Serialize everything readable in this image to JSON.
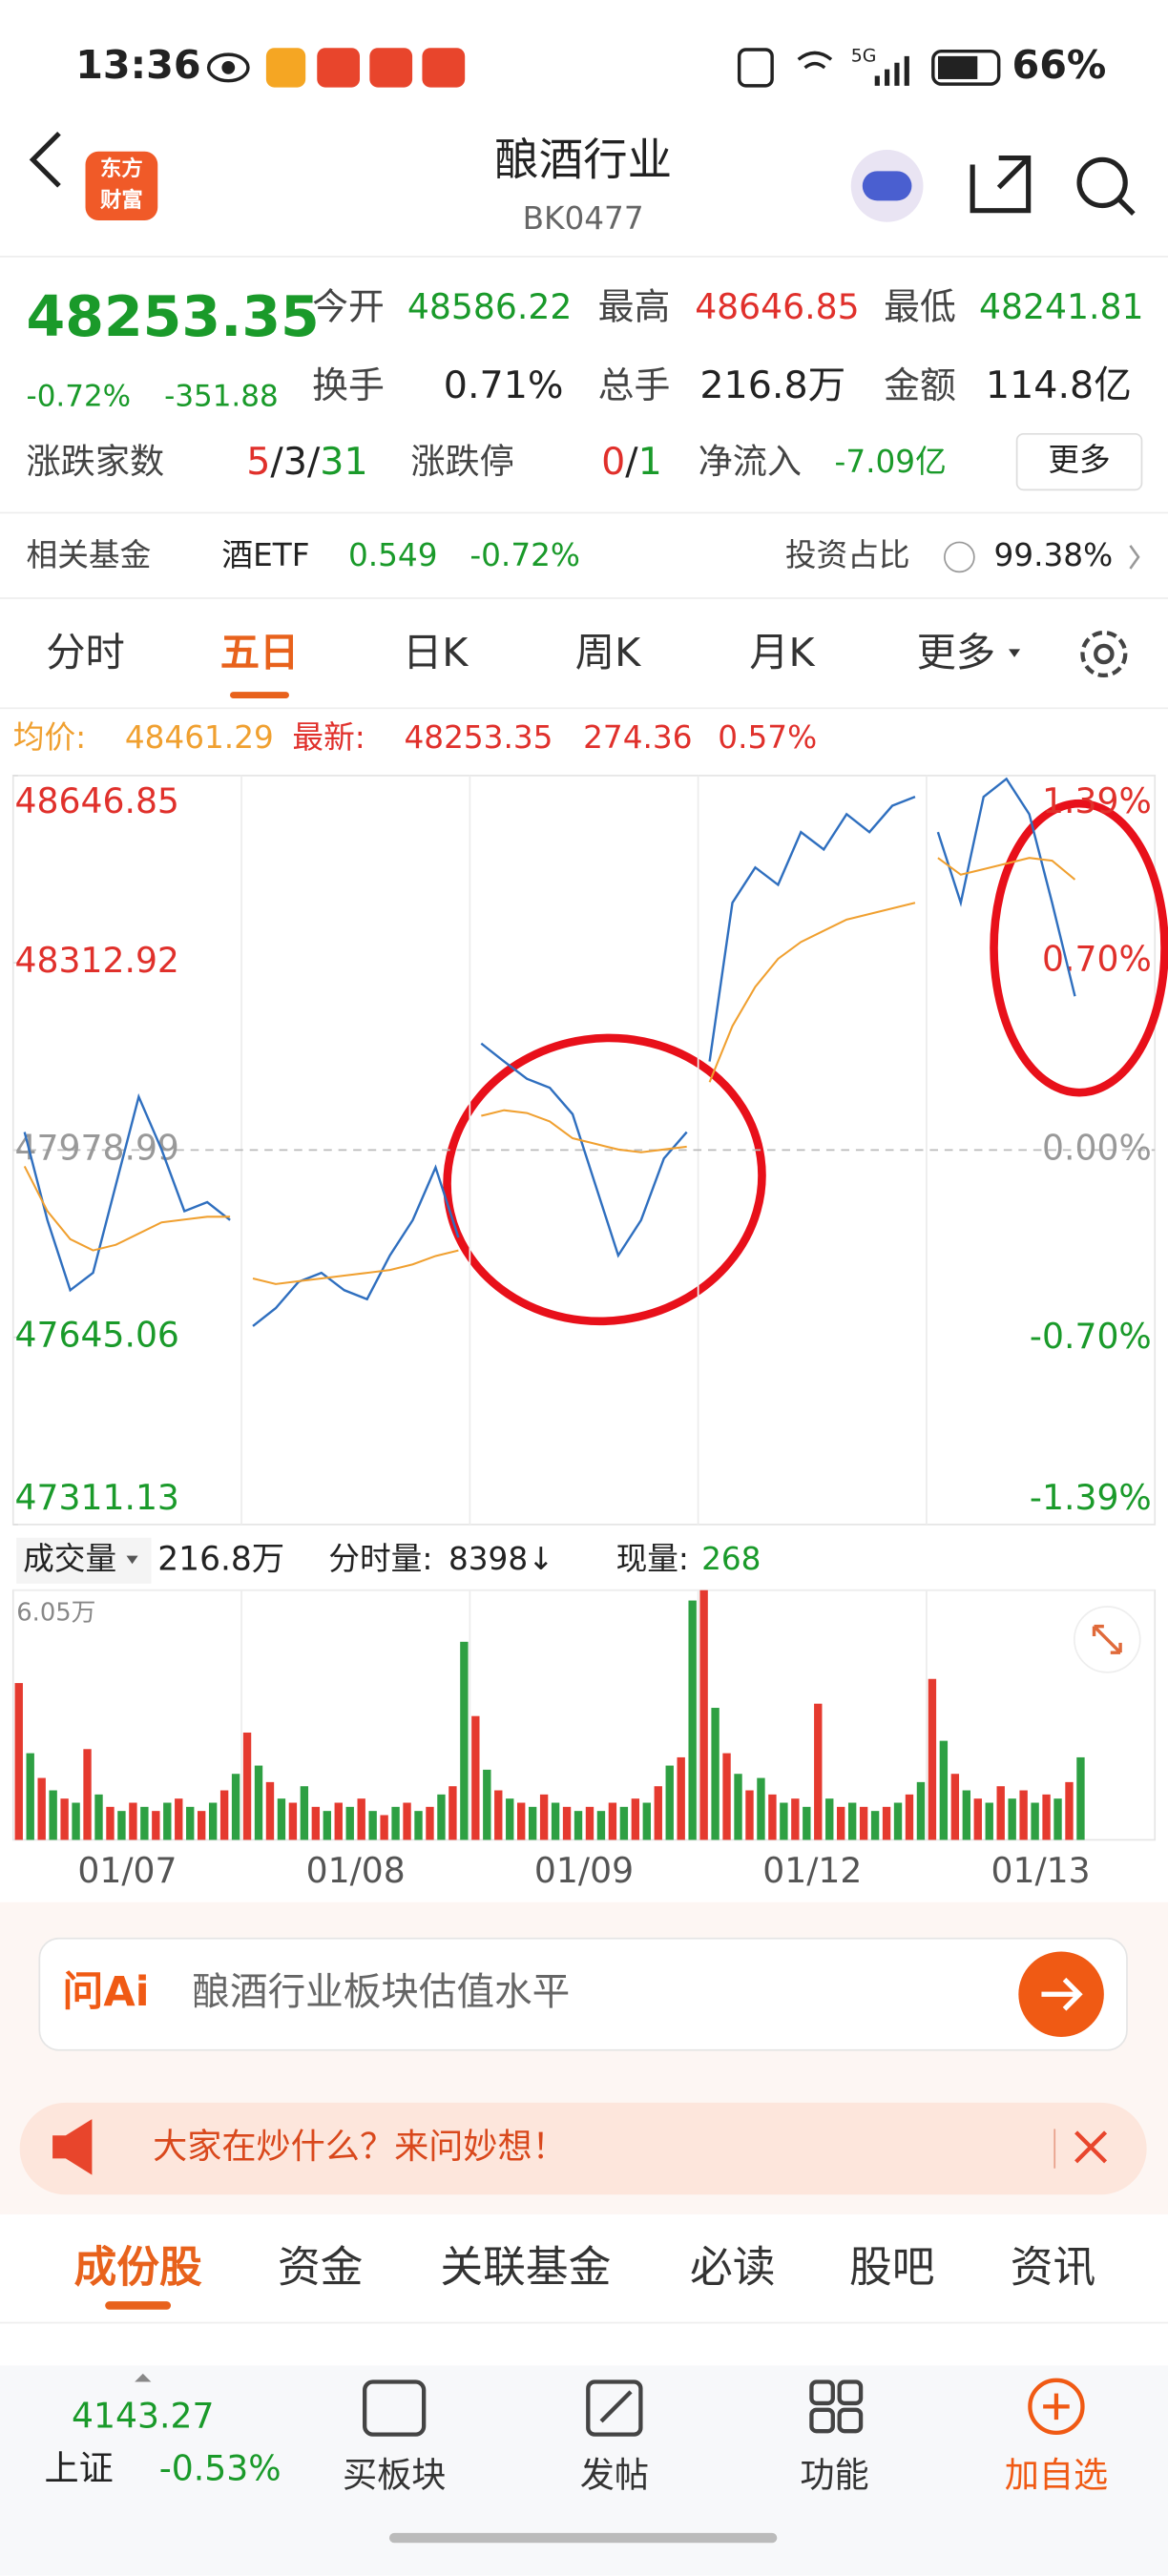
{
  "status_bar": {
    "time": "13:36",
    "network": "5G",
    "battery": "66%"
  },
  "header": {
    "logo_lines": [
      "东方",
      "财富"
    ],
    "title": "酿酒行业",
    "code": "BK0477"
  },
  "quote": {
    "price": "48253.35",
    "change_pct": "-0.72%",
    "change": "-351.88",
    "open": {
      "label": "今开",
      "value": "48586.22"
    },
    "high": {
      "label": "最高",
      "value": "48646.85"
    },
    "low": {
      "label": "最低",
      "value": "48241.81"
    },
    "turnover": {
      "label": "换手",
      "value": "0.71%"
    },
    "volume": {
      "label": "总手",
      "value": "216.8万"
    },
    "amount": {
      "label": "金额",
      "value": "114.8亿"
    },
    "breadth": {
      "label": "涨跌家数",
      "up": "5",
      "flat": "3",
      "down": "31",
      "separator": "/"
    },
    "limits": {
      "label": "涨跌停",
      "up": "0",
      "down": "1",
      "separator": "/"
    },
    "inflow": {
      "label": "净流入",
      "value": "-7.09亿"
    },
    "more": "更多"
  },
  "fund": {
    "label": "相关基金",
    "name": "酒ETF",
    "price": "0.549",
    "change": "-0.72%",
    "ratio_label": "投资占比",
    "ratio": "99.38%"
  },
  "period_tabs": {
    "items": [
      "分时",
      "五日",
      "日K",
      "周K",
      "月K",
      "更多"
    ],
    "active": 1
  },
  "chart_info": {
    "avg_label": "均价:",
    "avg": "48461.29",
    "last_label": "最新:",
    "last": "48253.35",
    "diff": "274.36",
    "pct": "0.57%"
  },
  "chart_data": [
    {
      "type": "line",
      "categories": [
        "01/07",
        "01/08",
        "01/09",
        "01/12",
        "01/13"
      ],
      "series": [
        {
          "color": "#2f6fbf",
          "values": [
            [
              48011,
              47854,
              47729,
              47760,
              47917,
              48074,
              47980,
              47870,
              47886,
              47854
            ],
            [
              47665,
              47697,
              47744,
              47760,
              47729,
              47713,
              47791,
              47854,
              47948,
              47823
            ],
            [
              48169,
              48137,
              48106,
              48090,
              48043,
              47917,
              47791,
              47854,
              47964,
              48011
            ],
            [
              48137,
              48420,
              48483,
              48452,
              48546,
              48515,
              48578,
              48546,
              48593,
              48609
            ],
            [
              48546,
              48420,
              48609,
              48641,
              48578,
              48420,
              48253.35,
              null,
              null,
              null
            ]
          ]
        },
        {
          "color": "#f0a030",
          "values": [
            [
              47950,
              47870,
              47820,
              47800,
              47810,
              47830,
              47850,
              47855,
              47860,
              47860
            ],
            [
              47750,
              47740,
              47745,
              47750,
              47755,
              47760,
              47765,
              47775,
              47790,
              47800
            ],
            [
              48040,
              48050,
              48045,
              48030,
              48000,
              47990,
              47980,
              47975,
              47980,
              47985
            ],
            [
              48100,
              48200,
              48270,
              48320,
              48350,
              48370,
              48390,
              48400,
              48410,
              48420
            ],
            [
              48500,
              48470,
              48480,
              48490,
              48500,
              48495,
              48461.29,
              null,
              null,
              null
            ]
          ]
        }
      ],
      "ylim": [
        47311.13,
        48646.85
      ],
      "yticks": [
        47311.13,
        47645.06,
        47978.99,
        48312.92,
        48646.85
      ],
      "y2lim": [
        -1.39,
        1.39
      ],
      "y2ticks": [
        {
          "value": -1.39,
          "label": "-1.39%"
        },
        {
          "value": -0.7,
          "label": "-0.70%"
        },
        {
          "value": 0,
          "label": "0.00%"
        },
        {
          "value": 0.7,
          "label": "0.70%"
        },
        {
          "value": 1.39,
          "label": "1.39%"
        }
      ],
      "grid": true
    },
    {
      "type": "bar",
      "series": [
        {
          "colors": [
            "#e53a2f",
            "#2ea043"
          ],
          "values": [
            [
              3.8,
              2.1,
              1.5,
              1.2,
              1.0,
              0.9,
              2.2,
              1.1,
              0.8,
              0.7,
              0.9,
              0.8,
              0.7,
              0.9,
              1.0,
              0.8,
              0.7,
              0.9,
              1.2,
              1.6
            ],
            [
              2.6,
              1.8,
              1.4,
              1.0,
              0.9,
              1.3,
              0.8,
              0.7,
              0.9,
              0.8,
              1.0,
              0.7,
              0.6,
              0.8,
              0.9,
              0.7,
              0.8,
              1.1,
              1.3,
              4.8
            ],
            [
              3.0,
              1.7,
              1.2,
              1.0,
              0.9,
              0.8,
              1.1,
              0.9,
              0.8,
              0.7,
              0.8,
              0.7,
              0.9,
              0.8,
              1.0,
              0.9,
              1.3,
              1.8,
              2.0,
              5.8
            ],
            [
              6.05,
              3.2,
              2.1,
              1.6,
              1.2,
              1.5,
              1.1,
              0.9,
              1.0,
              0.8,
              3.3,
              1.0,
              0.8,
              0.9,
              0.8,
              0.7,
              0.8,
              0.9,
              1.1,
              1.4
            ],
            [
              3.9,
              2.4,
              1.6,
              1.2,
              1.0,
              0.9,
              1.3,
              1.0,
              1.2,
              0.9,
              1.1,
              1.0,
              1.4,
              2.0,
              null,
              null,
              null,
              null,
              null,
              null
            ]
          ]
        }
      ],
      "ylim": [
        0,
        6.05
      ],
      "yticks": [
        {
          "value": 6.05,
          "label": "6.05万"
        }
      ]
    }
  ],
  "volume_info": {
    "label": "成交量",
    "total": "216.8万",
    "tick_label": "分时量:",
    "tick_value": "8398↓",
    "last_label": "现量:",
    "last_value": "268"
  },
  "ask_ai": {
    "brand": "问Ai",
    "prompt": "酿酒行业板块估值水平"
  },
  "banner": {
    "text": "大家在炒什么？来问妙想！"
  },
  "section_tabs": {
    "items": [
      "成份股",
      "资金",
      "关联基金",
      "必读",
      "股吧",
      "资讯"
    ],
    "active": 0
  },
  "bottom_bar": {
    "index_value": "4143.27",
    "index_name": "上证",
    "index_change": "-0.53%",
    "actions": [
      "买板块",
      "发帖",
      "功能",
      "加自选"
    ]
  }
}
